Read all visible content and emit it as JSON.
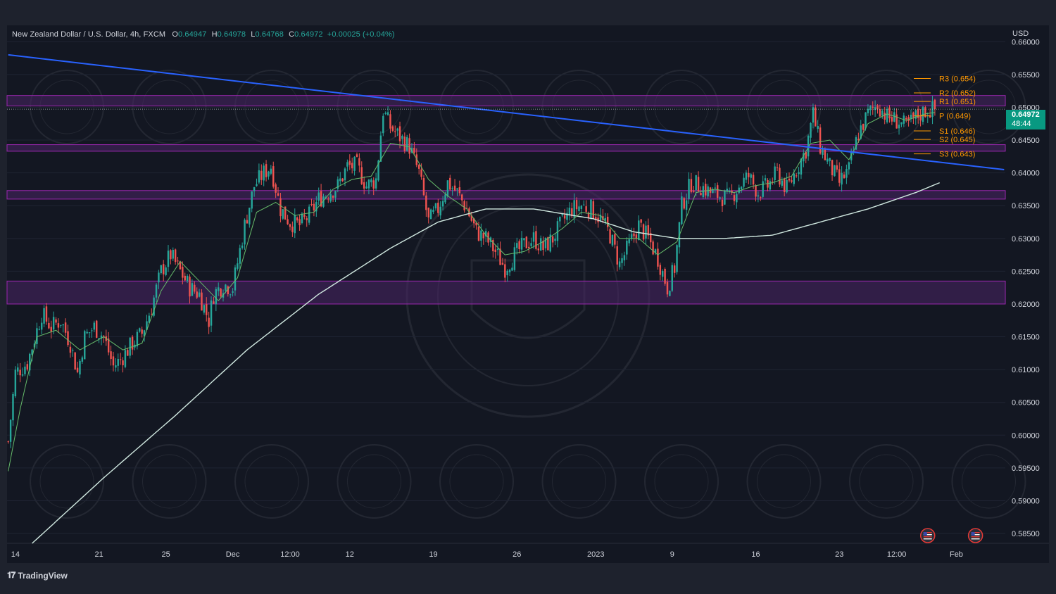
{
  "legend": {
    "symbol": "New Zealand Dollar / U.S. Dollar, 4h, FXCM",
    "o_label": "O",
    "o_value": "0.64947",
    "h_label": "H",
    "h_value": "0.64978",
    "l_label": "L",
    "l_value": "0.64768",
    "c_label": "C",
    "c_value": "0.64972",
    "change": "+0.00025 (+0.04%)"
  },
  "currency_label": "USD",
  "last_price": {
    "value": "0.64972",
    "countdown": "48:44"
  },
  "brand": "TradingView",
  "colors": {
    "background": "#131722",
    "frame": "#1e222d",
    "up": "#26a69a",
    "down": "#ef5350",
    "trendline": "#2962ff",
    "zone_fill": "#4a2466",
    "zone_border": "#9c27b0",
    "ema_fast": "#66bb6a",
    "sma_slow": "#d0e8e0",
    "pivot": "#ff9800",
    "last_price": "#089981"
  },
  "chart_data": {
    "type": "candlestick",
    "y_ticks": [
      "0.66000",
      "0.65500",
      "0.65000",
      "0.64500",
      "0.64000",
      "0.63500",
      "0.63000",
      "0.62500",
      "0.62000",
      "0.61500",
      "0.61000",
      "0.60500",
      "0.60000",
      "0.59500",
      "0.59000",
      "0.58500"
    ],
    "ylim": [
      0.5835,
      0.6625
    ],
    "x_ticks": [
      {
        "label": "14",
        "i": 3
      },
      {
        "label": "21",
        "i": 38
      },
      {
        "label": "25",
        "i": 66
      },
      {
        "label": "Dec",
        "i": 94
      },
      {
        "label": "12:00",
        "i": 118
      },
      {
        "label": "12",
        "i": 143
      },
      {
        "label": "19",
        "i": 178
      },
      {
        "label": "26",
        "i": 213
      },
      {
        "label": "2023",
        "i": 246
      },
      {
        "label": "9",
        "i": 278
      },
      {
        "label": "16",
        "i": 313
      },
      {
        "label": "23",
        "i": 348
      },
      {
        "label": "12:00",
        "i": 372
      },
      {
        "label": "Feb",
        "i": 397
      }
    ],
    "bar_count": 418,
    "anchors": [
      [
        0,
        0.599
      ],
      [
        3,
        0.6095
      ],
      [
        8,
        0.611
      ],
      [
        14,
        0.6185
      ],
      [
        18,
        0.6165
      ],
      [
        22,
        0.6175
      ],
      [
        26,
        0.614
      ],
      [
        29,
        0.6095
      ],
      [
        32,
        0.615
      ],
      [
        36,
        0.6165
      ],
      [
        40,
        0.615
      ],
      [
        44,
        0.6105
      ],
      [
        47,
        0.6115
      ],
      [
        52,
        0.614
      ],
      [
        56,
        0.6155
      ],
      [
        60,
        0.6195
      ],
      [
        64,
        0.625
      ],
      [
        68,
        0.6275
      ],
      [
        72,
        0.625
      ],
      [
        76,
        0.6225
      ],
      [
        80,
        0.6215
      ],
      [
        84,
        0.6175
      ],
      [
        86,
        0.6215
      ],
      [
        90,
        0.623
      ],
      [
        94,
        0.6225
      ],
      [
        99,
        0.632
      ],
      [
        103,
        0.638
      ],
      [
        107,
        0.64
      ],
      [
        110,
        0.641
      ],
      [
        114,
        0.6345
      ],
      [
        118,
        0.6325
      ],
      [
        122,
        0.632
      ],
      [
        126,
        0.6335
      ],
      [
        130,
        0.636
      ],
      [
        134,
        0.637
      ],
      [
        138,
        0.638
      ],
      [
        142,
        0.641
      ],
      [
        146,
        0.641
      ],
      [
        150,
        0.638
      ],
      [
        154,
        0.639
      ],
      [
        157,
        0.6495
      ],
      [
        160,
        0.647
      ],
      [
        164,
        0.6455
      ],
      [
        168,
        0.644
      ],
      [
        172,
        0.64
      ],
      [
        176,
        0.6325
      ],
      [
        180,
        0.6345
      ],
      [
        184,
        0.6385
      ],
      [
        188,
        0.637
      ],
      [
        192,
        0.6345
      ],
      [
        196,
        0.631
      ],
      [
        200,
        0.63
      ],
      [
        204,
        0.628
      ],
      [
        208,
        0.6255
      ],
      [
        212,
        0.6275
      ],
      [
        216,
        0.629
      ],
      [
        220,
        0.63
      ],
      [
        224,
        0.6285
      ],
      [
        228,
        0.63
      ],
      [
        232,
        0.6325
      ],
      [
        236,
        0.6345
      ],
      [
        240,
        0.635
      ],
      [
        244,
        0.6345
      ],
      [
        248,
        0.633
      ],
      [
        252,
        0.6305
      ],
      [
        256,
        0.626
      ],
      [
        260,
        0.629
      ],
      [
        264,
        0.632
      ],
      [
        268,
        0.63
      ],
      [
        272,
        0.627
      ],
      [
        276,
        0.6225
      ],
      [
        279,
        0.6255
      ],
      [
        282,
        0.635
      ],
      [
        286,
        0.6385
      ],
      [
        290,
        0.638
      ],
      [
        294,
        0.637
      ],
      [
        298,
        0.6365
      ],
      [
        302,
        0.636
      ],
      [
        306,
        0.638
      ],
      [
        310,
        0.6395
      ],
      [
        314,
        0.637
      ],
      [
        318,
        0.638
      ],
      [
        322,
        0.64
      ],
      [
        326,
        0.6375
      ],
      [
        330,
        0.6405
      ],
      [
        334,
        0.6435
      ],
      [
        337,
        0.649
      ],
      [
        340,
        0.644
      ],
      [
        344,
        0.641
      ],
      [
        348,
        0.6385
      ],
      [
        352,
        0.6405
      ],
      [
        356,
        0.646
      ],
      [
        360,
        0.649
      ],
      [
        364,
        0.6505
      ],
      [
        368,
        0.6485
      ],
      [
        372,
        0.648
      ],
      [
        376,
        0.647
      ],
      [
        380,
        0.6485
      ],
      [
        384,
        0.6495
      ],
      [
        388,
        0.6497
      ]
    ],
    "ema_fast_anchors": [
      [
        0,
        0.5945
      ],
      [
        5,
        0.604
      ],
      [
        12,
        0.615
      ],
      [
        20,
        0.616
      ],
      [
        30,
        0.613
      ],
      [
        40,
        0.615
      ],
      [
        48,
        0.613
      ],
      [
        56,
        0.614
      ],
      [
        64,
        0.622
      ],
      [
        72,
        0.6265
      ],
      [
        80,
        0.6235
      ],
      [
        88,
        0.6205
      ],
      [
        96,
        0.624
      ],
      [
        104,
        0.634
      ],
      [
        112,
        0.6355
      ],
      [
        120,
        0.6335
      ],
      [
        128,
        0.634
      ],
      [
        136,
        0.6375
      ],
      [
        144,
        0.639
      ],
      [
        152,
        0.6395
      ],
      [
        160,
        0.6445
      ],
      [
        168,
        0.644
      ],
      [
        176,
        0.639
      ],
      [
        184,
        0.6365
      ],
      [
        192,
        0.6345
      ],
      [
        200,
        0.6305
      ],
      [
        208,
        0.6275
      ],
      [
        216,
        0.628
      ],
      [
        224,
        0.6295
      ],
      [
        232,
        0.6315
      ],
      [
        240,
        0.634
      ],
      [
        248,
        0.6335
      ],
      [
        256,
        0.63
      ],
      [
        264,
        0.63
      ],
      [
        272,
        0.6275
      ],
      [
        280,
        0.6295
      ],
      [
        288,
        0.637
      ],
      [
        296,
        0.6375
      ],
      [
        304,
        0.637
      ],
      [
        312,
        0.638
      ],
      [
        320,
        0.6385
      ],
      [
        328,
        0.6395
      ],
      [
        336,
        0.6445
      ],
      [
        344,
        0.645
      ],
      [
        352,
        0.642
      ],
      [
        360,
        0.6475
      ],
      [
        368,
        0.649
      ],
      [
        376,
        0.648
      ],
      [
        384,
        0.649
      ],
      [
        388,
        0.6492
      ]
    ],
    "sma_slow_anchors": [
      [
        10,
        0.5835
      ],
      [
        40,
        0.5935
      ],
      [
        70,
        0.603
      ],
      [
        100,
        0.613
      ],
      [
        130,
        0.6215
      ],
      [
        160,
        0.6285
      ],
      [
        180,
        0.6325
      ],
      [
        200,
        0.6345
      ],
      [
        220,
        0.6345
      ],
      [
        245,
        0.633
      ],
      [
        262,
        0.631
      ],
      [
        280,
        0.63
      ],
      [
        300,
        0.63
      ],
      [
        320,
        0.6305
      ],
      [
        340,
        0.6325
      ],
      [
        360,
        0.6345
      ],
      [
        380,
        0.637
      ],
      [
        390,
        0.6385
      ]
    ],
    "trendline": {
      "start": [
        0,
        0.658
      ],
      "end": [
        417,
        0.6405
      ]
    },
    "zones": [
      {
        "top": 0.6518,
        "bottom": 0.6502
      },
      {
        "top": 0.6443,
        "bottom": 0.6433
      },
      {
        "top": 0.6373,
        "bottom": 0.636
      },
      {
        "top": 0.6235,
        "bottom": 0.62
      }
    ],
    "pivots": [
      {
        "label": "R3 (0.654)",
        "value": 0.6544
      },
      {
        "label": "R2 (0.652)",
        "value": 0.6522
      },
      {
        "label": "R1 (0.651)",
        "value": 0.6509
      },
      {
        "label": "P (0.649)",
        "value": 0.6487
      },
      {
        "label": "S1 (0.646)",
        "value": 0.6464
      },
      {
        "label": "S2 (0.645)",
        "value": 0.6451
      },
      {
        "label": "S3 (0.643)",
        "value": 0.6429
      }
    ],
    "last_price_value": 0.64972,
    "event_markers": [
      {
        "name": "us-flag-event-1",
        "i": 385
      },
      {
        "name": "us-flag-event-2",
        "i": 405
      }
    ]
  }
}
